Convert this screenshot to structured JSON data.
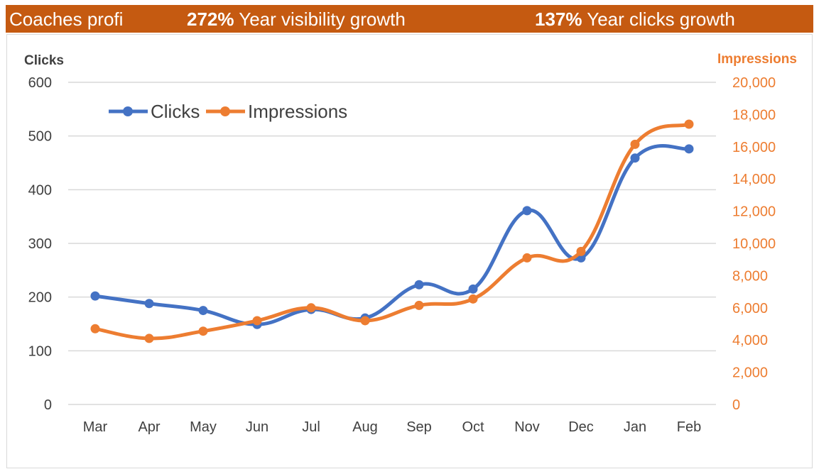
{
  "banner": {
    "title": "Coaches profi",
    "visibility_value": "272%",
    "visibility_label": "Year visibility growth",
    "clicks_value": "137%",
    "clicks_label": "Year clicks growth",
    "background": "#c55a11"
  },
  "chart_data": {
    "type": "line",
    "categories": [
      "Mar",
      "Apr",
      "May",
      "Jun",
      "Jul",
      "Aug",
      "Sep",
      "Oct",
      "Nov",
      "Dec",
      "Jan",
      "Feb"
    ],
    "series": [
      {
        "name": "Clicks",
        "axis": "left",
        "color": "#4472c4",
        "values": [
          202,
          188,
          175,
          149,
          177,
          161,
          223,
          215,
          361,
          273,
          459,
          476
        ]
      },
      {
        "name": "Impressions",
        "axis": "right",
        "color": "#ed7d31",
        "values": [
          4700,
          4100,
          4550,
          5200,
          6000,
          5200,
          6150,
          6550,
          9100,
          9500,
          16150,
          17400
        ]
      }
    ],
    "ylabel": "Clicks",
    "y2label": "Impressions",
    "ylim": [
      0,
      600
    ],
    "y2lim": [
      0,
      20000
    ],
    "yticks": [
      "0",
      "100",
      "200",
      "300",
      "400",
      "500",
      "600"
    ],
    "y2ticks": [
      "0",
      "2,000",
      "4,000",
      "6,000",
      "8,000",
      "10,000",
      "12,000",
      "14,000",
      "16,000",
      "18,000",
      "20,000"
    ],
    "grid": true,
    "legend": "top-left",
    "smooth": true
  }
}
